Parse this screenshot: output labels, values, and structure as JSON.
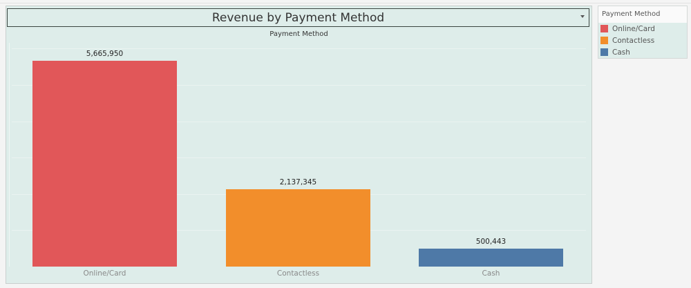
{
  "chart_data": {
    "type": "bar",
    "title": "Revenue by Payment Method",
    "header": "Payment Method",
    "xlabel": "",
    "ylabel": "",
    "categories": [
      "Online/Card",
      "Contactless",
      "Cash"
    ],
    "values": [
      5665950,
      2137345,
      500443
    ],
    "value_labels": [
      "5,665,950",
      "2,137,345",
      "500,443"
    ],
    "colors": [
      "#e15759",
      "#f28e2b",
      "#4e79a7"
    ],
    "ylim": [
      0,
      6000000
    ],
    "grid": true,
    "gridline_interval": 1000000,
    "legend": {
      "title": "Payment Method",
      "position": "right",
      "entries": [
        "Online/Card",
        "Contactless",
        "Cash"
      ]
    }
  },
  "legend": {
    "title": "Payment Method",
    "items": [
      {
        "label": "Online/Card",
        "color": "#e15759"
      },
      {
        "label": "Contactless",
        "color": "#f28e2b"
      },
      {
        "label": "Cash",
        "color": "#4e79a7"
      }
    ]
  }
}
